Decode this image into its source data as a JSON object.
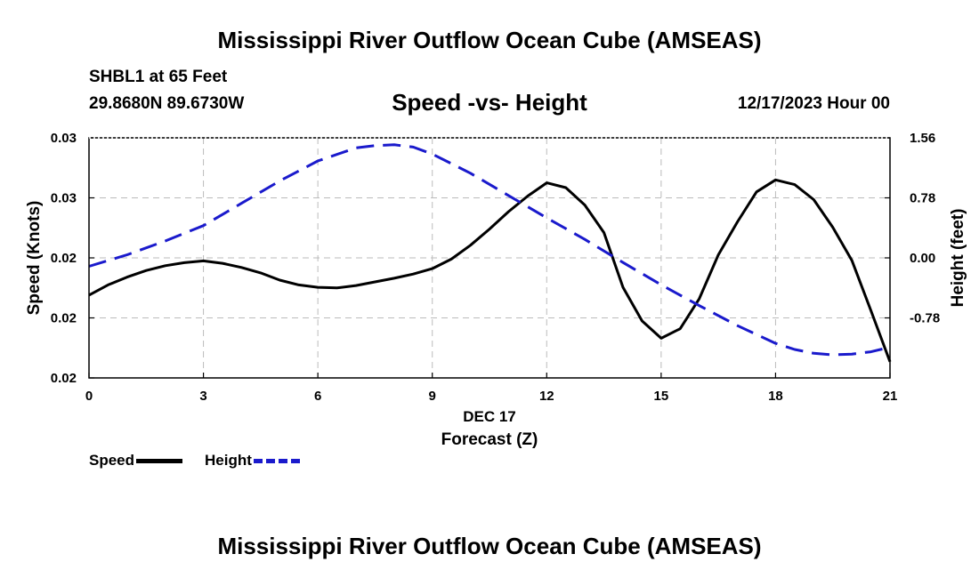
{
  "page_title": "Mississippi River Outflow Ocean Cube (AMSEAS)",
  "footer_title": "Mississippi River Outflow Ocean Cube (AMSEAS)",
  "header": {
    "station": "SHBL1 at 65 Feet",
    "coordinates": "29.8680N  89.6730W",
    "datetime": "12/17/2023 Hour 00"
  },
  "legend": {
    "speed_label": "Speed",
    "height_label": "Height"
  },
  "colors": {
    "speed": "#000000",
    "height": "#1a1acc",
    "grid": "#bbbbbb"
  },
  "chart_data": {
    "type": "line",
    "title": "Speed -vs- Height",
    "xlabel": "Forecast (Z)",
    "xlabel_date": "DEC 17",
    "ylabel": "Speed (Knots)",
    "y2label": "Height (feet)",
    "xlim": [
      0,
      21
    ],
    "ylim": [
      0,
      4
    ],
    "y2lim": [
      -1.56,
      1.56
    ],
    "x_ticks": [
      0,
      3,
      6,
      9,
      12,
      15,
      18,
      21
    ],
    "y_tick_positions": [
      0,
      1,
      2,
      3,
      4
    ],
    "y_tick_labels": [
      "0.02",
      "0.02",
      "0.02",
      "0.03",
      "0.03"
    ],
    "y2_ticks": [
      -0.78,
      0.0,
      0.78,
      1.56
    ],
    "y2_tick_labels": [
      "-0.78",
      "0.00",
      "0.78",
      "1.56"
    ],
    "grid": true,
    "series": [
      {
        "name": "Speed",
        "axis": "left",
        "style": "solid",
        "x": [
          0,
          0.5,
          1,
          1.5,
          2,
          2.5,
          3,
          3.5,
          4,
          4.5,
          5,
          5.5,
          6,
          6.5,
          7,
          7.5,
          8,
          8.5,
          9,
          9.5,
          10,
          10.5,
          11,
          11.5,
          12,
          12.5,
          13,
          13.5,
          14,
          14.5,
          15,
          15.5,
          16,
          16.5,
          17,
          17.5,
          18,
          18.5,
          19,
          19.5,
          20,
          20.5,
          21
        ],
        "values": [
          1.38,
          1.55,
          1.68,
          1.79,
          1.87,
          1.92,
          1.95,
          1.91,
          1.84,
          1.75,
          1.63,
          1.55,
          1.51,
          1.5,
          1.54,
          1.6,
          1.66,
          1.73,
          1.82,
          1.98,
          2.21,
          2.48,
          2.77,
          3.03,
          3.25,
          3.17,
          2.88,
          2.42,
          1.51,
          0.95,
          0.66,
          0.82,
          1.32,
          2.05,
          2.6,
          3.1,
          3.3,
          3.22,
          2.97,
          2.51,
          1.96,
          1.12,
          0.27
        ]
      },
      {
        "name": "Height",
        "axis": "right",
        "style": "dashed",
        "x": [
          0,
          1,
          2,
          3,
          4,
          5,
          6,
          7,
          7.5,
          8,
          8.5,
          9,
          10,
          11,
          12,
          13,
          14,
          15,
          16,
          17,
          18,
          18.5,
          19,
          19.5,
          20,
          20.5,
          21
        ],
        "values": [
          -0.11,
          0.04,
          0.22,
          0.42,
          0.71,
          1.0,
          1.26,
          1.43,
          1.46,
          1.47,
          1.44,
          1.35,
          1.1,
          0.81,
          0.52,
          0.24,
          -0.06,
          -0.35,
          -0.62,
          -0.88,
          -1.11,
          -1.19,
          -1.24,
          -1.26,
          -1.25,
          -1.22,
          -1.16
        ]
      }
    ]
  }
}
